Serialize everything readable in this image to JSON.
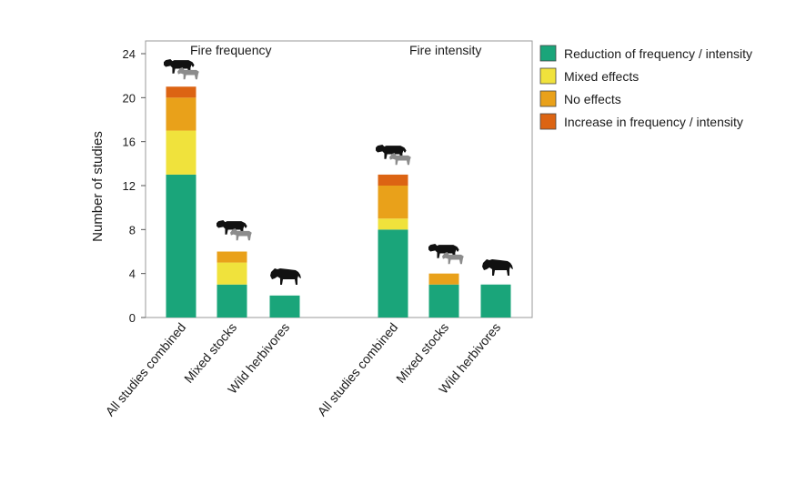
{
  "chart_data": {
    "type": "bar",
    "stacked": true,
    "ylabel": "Number of studies",
    "xlabel": "",
    "ylim": [
      0,
      24
    ],
    "yticks": [
      0,
      4,
      8,
      12,
      16,
      20,
      24
    ],
    "grid": false,
    "legend_position": "right",
    "panels": [
      {
        "title": "Fire frequency",
        "categories": [
          "All studies combined",
          "Mixed stocks",
          "Wild herbivores"
        ],
        "icons": [
          "cattle-and-goat-icon",
          "cattle-and-goat-icon",
          "wildebeest-icon"
        ]
      },
      {
        "title": "Fire intensity",
        "categories": [
          "All studies combined",
          "Mixed stocks",
          "Wild herbivores"
        ],
        "icons": [
          "cattle-and-goat-icon",
          "cattle-and-goat-icon",
          "wildebeest-icon"
        ]
      }
    ],
    "series": [
      {
        "name": "Reduction of frequency / intensity",
        "color": "#1aa57a",
        "values": [
          [
            13,
            3,
            2
          ],
          [
            8,
            3,
            3
          ]
        ]
      },
      {
        "name": "Mixed effects",
        "color": "#f0e23c",
        "values": [
          [
            4,
            2,
            0
          ],
          [
            1,
            0,
            0
          ]
        ]
      },
      {
        "name": "No effects",
        "color": "#e9a11a",
        "values": [
          [
            3,
            1,
            0
          ],
          [
            3,
            1,
            0
          ]
        ]
      },
      {
        "name": "Increase in frequency / intensity",
        "color": "#dc6413",
        "values": [
          [
            1,
            0,
            0
          ],
          [
            1,
            0,
            0
          ]
        ]
      }
    ]
  }
}
